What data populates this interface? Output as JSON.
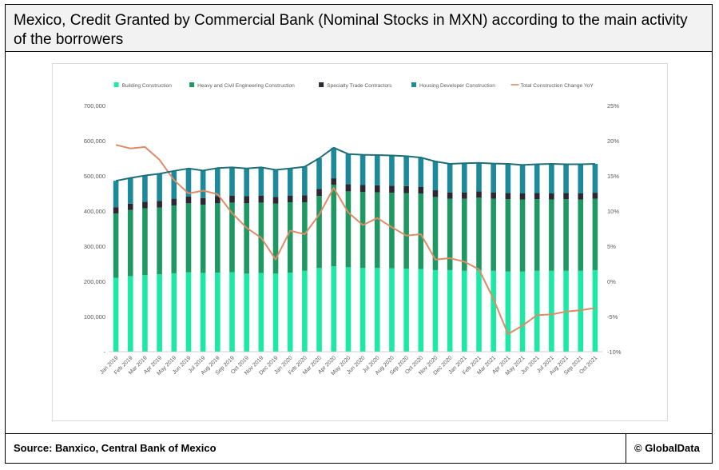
{
  "header": {
    "title": "Mexico, Credit Granted by Commercial Bank (Nominal Stocks in MXN) according to the main activity of the borrowers"
  },
  "footer": {
    "source": "Source: Banxico, Central Bank of Mexico",
    "credit": "© GlobalData"
  },
  "colors": {
    "building": "#1de9a6",
    "heavy_civil": "#1f9963",
    "specialty": "#2b2733",
    "housing": "#1c8a9b",
    "total_line": "#1f6f78",
    "yoy_line": "#e08a68"
  },
  "chart_data": {
    "type": "bar",
    "stacked": true,
    "categories": [
      "Jan 2019",
      "Feb 2019",
      "Mar 2019",
      "Apr 2019",
      "May 2019",
      "Jun 2019",
      "Jul 2019",
      "Aug 2019",
      "Sep 2019",
      "Oct 2019",
      "Nov 2019",
      "Dec 2019",
      "Jan 2020",
      "Feb 2020",
      "Mar 2020",
      "Apr 2020",
      "May 2020",
      "Jun 2020",
      "Jul 2020",
      "Aug 2020",
      "Sep 2020",
      "Oct 2020",
      "Nov 2020",
      "Dec 2020",
      "Jan 2021",
      "Feb 2021",
      "Mar 2021",
      "Apr 2021",
      "May 2021",
      "Jun 2021",
      "Jul 2021",
      "Aug 2021",
      "Sep 2021",
      "Oct 2021"
    ],
    "series": [
      {
        "name": "Building Construction",
        "key": "building",
        "values": [
          210000,
          215000,
          218000,
          220000,
          223000,
          226000,
          224000,
          225000,
          226000,
          222000,
          224000,
          222000,
          225000,
          230000,
          238000,
          243000,
          240000,
          238000,
          238000,
          237000,
          236000,
          235000,
          232000,
          232000,
          230000,
          232000,
          230000,
          228000,
          228000,
          230000,
          230000,
          230000,
          230000,
          232000
        ]
      },
      {
        "name": "Heavy and Civil Engineering Construction",
        "key": "heavy_civil",
        "values": [
          183000,
          188000,
          190000,
          190000,
          193000,
          196000,
          194000,
          197000,
          198000,
          200000,
          200000,
          199000,
          200000,
          195000,
          205000,
          232000,
          216000,
          216000,
          215000,
          215000,
          215000,
          215000,
          208000,
          203000,
          205000,
          206000,
          205000,
          206000,
          205000,
          204000,
          203000,
          204000,
          203000,
          203000
        ]
      },
      {
        "name": "Specialty Trade Contractors",
        "key": "specialty",
        "values": [
          18000,
          18000,
          18000,
          19000,
          19000,
          19000,
          19000,
          20000,
          20000,
          20000,
          20000,
          19000,
          19000,
          20000,
          20000,
          18000,
          20000,
          20000,
          20000,
          20000,
          20000,
          19000,
          19000,
          18000,
          18000,
          18000,
          18000,
          17000,
          17000,
          17000,
          17000,
          17000,
          17000,
          17000
        ]
      },
      {
        "name": "Housing Developer Construction",
        "key": "housing",
        "values": [
          75000,
          73000,
          75000,
          77000,
          79000,
          80000,
          78000,
          80000,
          80000,
          79000,
          80000,
          77000,
          77000,
          81000,
          87000,
          87000,
          86000,
          86000,
          86000,
          86000,
          85000,
          83000,
          82000,
          81000,
          83000,
          81000,
          82000,
          83000,
          81000,
          82000,
          84000,
          82000,
          83000,
          82000
        ]
      }
    ],
    "line_series": [
      {
        "name": "Total Construction Change YoY",
        "key": "yoy",
        "axis": "right",
        "values": [
          19.4,
          18.9,
          19.1,
          17.3,
          14.4,
          12.5,
          12.9,
          12.4,
          9.7,
          7.6,
          6.2,
          3.1,
          7.2,
          6.7,
          9.5,
          13.3,
          9.8,
          8.0,
          9.0,
          7.7,
          6.5,
          6.7,
          3.1,
          3.3,
          2.8,
          1.7,
          -2.5,
          -7.5,
          -6.3,
          -4.8,
          -4.7,
          -4.3,
          -4.1,
          -3.8
        ]
      },
      {
        "name": "Total",
        "key": "total",
        "axis": "left",
        "show_in_legend": false,
        "values": [
          486000,
          494000,
          501000,
          506000,
          514000,
          521000,
          515000,
          522000,
          524000,
          521000,
          524000,
          517000,
          521000,
          526000,
          550000,
          580000,
          562000,
          560000,
          559000,
          558000,
          556000,
          552000,
          541000,
          534000,
          536000,
          537000,
          535000,
          534000,
          531000,
          533000,
          534000,
          533000,
          533000,
          534000
        ]
      }
    ],
    "y_left": {
      "min": 0,
      "max": 700000,
      "ticks": [
        "-",
        "100,000",
        "200,000",
        "300,000",
        "400,000",
        "500,000",
        "600,000",
        "700,000"
      ]
    },
    "y_right": {
      "min": -10,
      "max": 25,
      "ticks": [
        "-10%",
        "-5%",
        "0%",
        "5%",
        "10%",
        "15%",
        "20%",
        "25%"
      ]
    },
    "legend_position": "top",
    "grid": false
  }
}
